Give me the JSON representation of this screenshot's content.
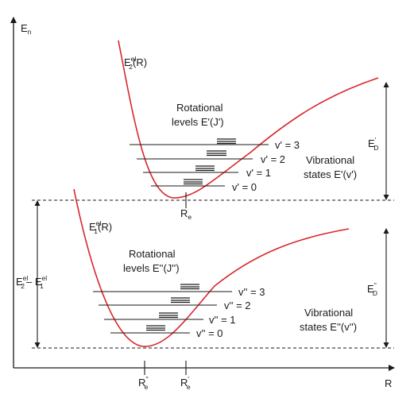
{
  "axes": {
    "y_label": "E",
    "y_label_sub": "n",
    "x_label": "R"
  },
  "upper_state": {
    "curve_label": "E",
    "curve_label_sup": "el",
    "curve_label_sub": "2",
    "curve_label_arg": "(R)",
    "rot_line1": "Rotational",
    "rot_line2": "levels E'(J')",
    "vib_levels": [
      "v' = 3",
      "v' = 2",
      "v' = 1",
      "v' = 0"
    ],
    "vib_line1": "Vibrational",
    "vib_line2": "states E'(v')",
    "dissoc_label": "E",
    "dissoc_sup": "'",
    "dissoc_sub": "D",
    "re_label": "R",
    "re_sub": "e"
  },
  "lower_state": {
    "curve_label": "E",
    "curve_label_sup": "el",
    "curve_label_sub": "1",
    "curve_label_arg": "(R)",
    "rot_line1": "Rotational",
    "rot_line2": "levels E''(J'')",
    "vib_levels": [
      "v'' = 3",
      "v'' = 2",
      "v'' = 1",
      "v'' = 0"
    ],
    "vib_line1": "Vibrational",
    "vib_line2": "states E''(v'')",
    "dissoc_label": "E",
    "dissoc_sup": "''",
    "dissoc_sub": "D"
  },
  "gap": {
    "e2": "E",
    "e2_sup": "el",
    "e2_sub": "2",
    "minus": "– E",
    "e1_sup": "el",
    "e1_sub": "1"
  },
  "x_ticks": {
    "re2_label": "R",
    "re2_sup": "''",
    "re2_sub": "e",
    "re1_label": "R",
    "re1_sup": "'",
    "re1_sub": "e"
  },
  "colors": {
    "curve": "#d8262a",
    "ink": "#1a1a1a"
  }
}
